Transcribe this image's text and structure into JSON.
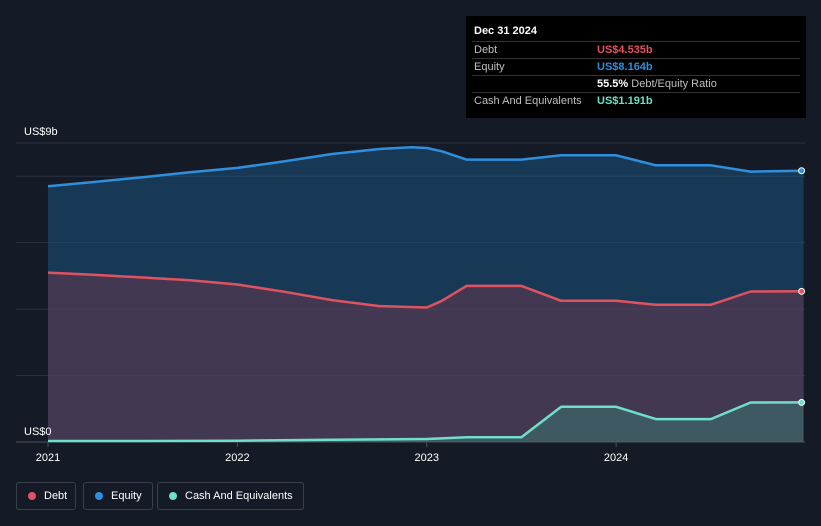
{
  "tooltip": {
    "date": "Dec 31 2024",
    "debt_label": "Debt",
    "debt_value": "US$4.535b",
    "equity_label": "Equity",
    "equity_value": "US$8.164b",
    "ratio_value": "55.5%",
    "ratio_label": "Debt/Equity Ratio",
    "cash_label": "Cash And Equivalents",
    "cash_value": "US$1.191b"
  },
  "colors": {
    "debt": "#e05260",
    "equity": "#2f8fdc",
    "cash": "#6ee0c9",
    "background": "#151b26"
  },
  "legend": [
    {
      "label": "Debt",
      "color": "#e05260"
    },
    {
      "label": "Equity",
      "color": "#2f8fdc"
    },
    {
      "label": "Cash And Equivalents",
      "color": "#6ee0c9"
    }
  ],
  "chart_data": {
    "type": "area",
    "y_top_label": "US$9b",
    "y_bottom_label": "US$0",
    "ylim": [
      0,
      9
    ],
    "xlim": [
      2021.0,
      2025.0
    ],
    "x_ticks": [
      "2021",
      "2022",
      "2023",
      "2024"
    ],
    "grid": true,
    "legend_position": "bottom-left",
    "series": [
      {
        "name": "Equity",
        "color": "#2f8fdc",
        "x": [
          2021.0,
          2021.25,
          2021.5,
          2021.75,
          2022.0,
          2022.25,
          2022.5,
          2022.75,
          2022.92,
          2023.0,
          2023.08,
          2023.21,
          2023.5,
          2023.71,
          2024.0,
          2024.21,
          2024.5,
          2024.71,
          2024.99
        ],
        "y": [
          7.7,
          7.83,
          7.97,
          8.12,
          8.25,
          8.45,
          8.67,
          8.82,
          8.87,
          8.85,
          8.75,
          8.5,
          8.5,
          8.63,
          8.63,
          8.33,
          8.33,
          8.14,
          8.164
        ]
      },
      {
        "name": "Debt",
        "color": "#e05260",
        "x": [
          2021.0,
          2021.25,
          2021.5,
          2021.75,
          2022.0,
          2022.25,
          2022.5,
          2022.75,
          2023.0,
          2023.08,
          2023.21,
          2023.5,
          2023.71,
          2024.0,
          2024.21,
          2024.5,
          2024.71,
          2024.99
        ],
        "y": [
          5.1,
          5.03,
          4.95,
          4.87,
          4.74,
          4.52,
          4.27,
          4.09,
          4.05,
          4.25,
          4.7,
          4.7,
          4.25,
          4.25,
          4.13,
          4.13,
          4.53,
          4.535
        ]
      },
      {
        "name": "Cash And Equivalents",
        "color": "#6ee0c9",
        "x": [
          2021.0,
          2021.5,
          2022.0,
          2022.5,
          2023.0,
          2023.21,
          2023.5,
          2023.71,
          2024.0,
          2024.21,
          2024.5,
          2024.71,
          2024.99
        ],
        "y": [
          0.03,
          0.03,
          0.04,
          0.07,
          0.09,
          0.14,
          0.14,
          1.06,
          1.06,
          0.69,
          0.69,
          1.19,
          1.191
        ]
      }
    ]
  }
}
